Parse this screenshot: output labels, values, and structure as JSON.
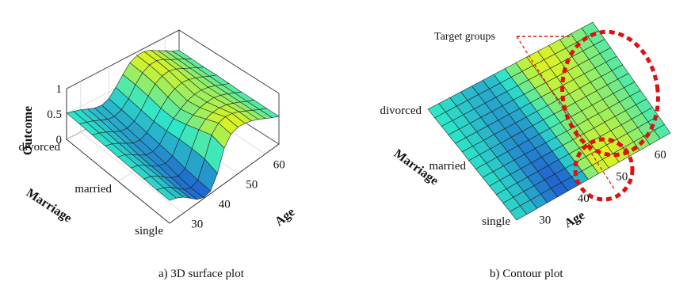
{
  "captions": {
    "left": "a) 3D surface plot",
    "right": "b) Contour plot"
  },
  "colors": {
    "low": "#1f5fd0",
    "mid": "#2ee6c8",
    "high": "#f4f50a",
    "edge": "#1a1a1a",
    "target": "#e01010"
  },
  "chart_data": [
    {
      "type": "surface",
      "xlabel": "Age",
      "ylabel": "Marriage",
      "zlabel": "Outcome",
      "x_ticks": [
        "30",
        "40",
        "50",
        "60"
      ],
      "y_ticks": [
        "single",
        "married",
        "divorced"
      ],
      "z_ticks": [
        "0",
        "0.5",
        "1"
      ],
      "xlim": [
        25,
        65
      ],
      "zlim": [
        0,
        1
      ],
      "grid": true,
      "age": [
        25,
        27.5,
        30,
        32.5,
        35,
        37.5,
        40,
        42.5,
        45,
        47.5,
        50,
        52.5,
        55,
        57.5,
        60,
        62.5,
        65
      ],
      "marriage": [
        "single",
        "",
        "",
        "",
        "married",
        "",
        "",
        "",
        "divorced"
      ],
      "outcome": [
        [
          0.45,
          0.4,
          0.32,
          0.2,
          0.08,
          0.02,
          0.05,
          0.3,
          0.7,
          0.88,
          0.92,
          0.9,
          0.85,
          0.78,
          0.7,
          0.62,
          0.55
        ],
        [
          0.45,
          0.4,
          0.32,
          0.2,
          0.08,
          0.02,
          0.08,
          0.4,
          0.78,
          0.92,
          0.95,
          0.92,
          0.86,
          0.78,
          0.7,
          0.62,
          0.55
        ],
        [
          0.46,
          0.42,
          0.34,
          0.22,
          0.12,
          0.06,
          0.12,
          0.42,
          0.7,
          0.82,
          0.86,
          0.86,
          0.83,
          0.77,
          0.7,
          0.62,
          0.56
        ],
        [
          0.47,
          0.43,
          0.35,
          0.24,
          0.16,
          0.12,
          0.18,
          0.42,
          0.62,
          0.72,
          0.78,
          0.8,
          0.8,
          0.76,
          0.7,
          0.63,
          0.56
        ],
        [
          0.48,
          0.44,
          0.36,
          0.26,
          0.18,
          0.16,
          0.22,
          0.4,
          0.56,
          0.66,
          0.74,
          0.78,
          0.78,
          0.75,
          0.7,
          0.63,
          0.57
        ],
        [
          0.49,
          0.45,
          0.38,
          0.3,
          0.22,
          0.2,
          0.26,
          0.4,
          0.58,
          0.72,
          0.8,
          0.84,
          0.82,
          0.77,
          0.71,
          0.64,
          0.58
        ],
        [
          0.5,
          0.46,
          0.4,
          0.33,
          0.26,
          0.24,
          0.3,
          0.44,
          0.64,
          0.8,
          0.88,
          0.9,
          0.86,
          0.79,
          0.72,
          0.65,
          0.58
        ],
        [
          0.51,
          0.47,
          0.42,
          0.36,
          0.3,
          0.28,
          0.34,
          0.48,
          0.68,
          0.84,
          0.92,
          0.93,
          0.88,
          0.8,
          0.73,
          0.66,
          0.59
        ],
        [
          0.52,
          0.48,
          0.44,
          0.38,
          0.33,
          0.31,
          0.37,
          0.52,
          0.7,
          0.86,
          0.93,
          0.94,
          0.89,
          0.81,
          0.74,
          0.66,
          0.6
        ]
      ]
    },
    {
      "type": "heatmap",
      "xlabel": "Age",
      "ylabel": "Marriage",
      "x_ticks": [
        "30",
        "40",
        "50",
        "60"
      ],
      "y_ticks": [
        "single",
        "married",
        "divorced"
      ],
      "annotation": "Target groups",
      "grid": true
    }
  ]
}
